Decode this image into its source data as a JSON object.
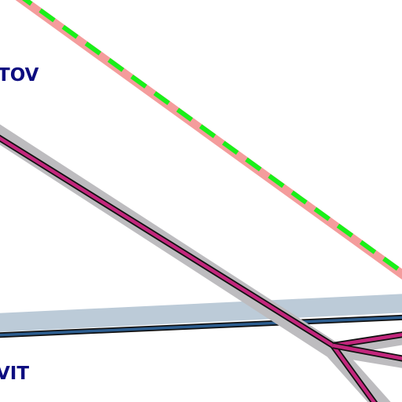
{
  "map": {
    "labels": {
      "upper_left": "TOV",
      "lower_left": "VIT"
    },
    "colors": {
      "background": "#ffffff",
      "label_text": "#0d0d80",
      "route_casing": "#bdbcbf",
      "rail_fill": "#c2267c",
      "rail_outline": "#111111",
      "blue_route_casing": "#bccbd8",
      "blue_route_fill": "#2c5d8f",
      "boundary_fill": "#f49c9c",
      "boundary_dash": "#19f019"
    },
    "features": [
      {
        "id": "boundary-line",
        "kind": "dashed boundary",
        "icon": "green-dashed-line"
      },
      {
        "id": "magenta-rail-main",
        "kind": "rail line",
        "icon": "magenta-line"
      },
      {
        "id": "magenta-rail-branch",
        "kind": "rail branch",
        "icon": "magenta-line"
      },
      {
        "id": "blue-road",
        "kind": "road",
        "icon": "blue-line"
      }
    ]
  }
}
